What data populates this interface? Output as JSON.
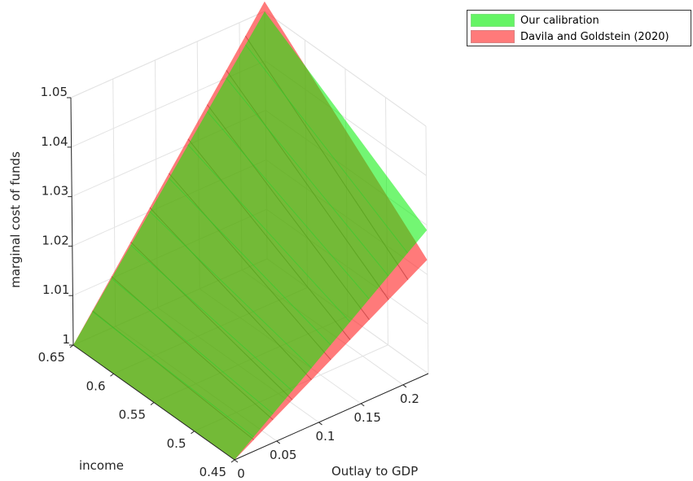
{
  "chart_data": {
    "type": "surface",
    "zlabel": "marginal cost of funds",
    "xlabel": "Outlay to GDP",
    "ylabel": "income",
    "x_ticks": [
      "0",
      "0.05",
      "0.1",
      "0.15",
      "0.2"
    ],
    "y_ticks": [
      "0.45",
      "0.5",
      "0.55",
      "0.6",
      "0.65"
    ],
    "z_ticks": [
      "1",
      "1.01",
      "1.02",
      "1.03",
      "1.04",
      "1.05"
    ],
    "xlim": [
      0,
      0.23
    ],
    "ylim": [
      0.45,
      0.65
    ],
    "zlim": [
      1,
      1.05
    ],
    "grid": true,
    "legend_position": "top-right",
    "series": [
      {
        "name": "Our calibration",
        "color": "#00ee00",
        "corner_values": [
          {
            "outlay": 0,
            "income": 0.65,
            "value": 1.0
          },
          {
            "outlay": 0.23,
            "income": 0.65,
            "value": 1.05
          },
          {
            "outlay": 0,
            "income": 0.45,
            "value": 1.0
          },
          {
            "outlay": 0.23,
            "income": 0.45,
            "value": 1.029
          }
        ]
      },
      {
        "name": "Davila and Goldstein (2020)",
        "color": "#ff2222",
        "corner_values": [
          {
            "outlay": 0,
            "income": 0.65,
            "value": 1.0
          },
          {
            "outlay": 0.23,
            "income": 0.65,
            "value": 1.052
          },
          {
            "outlay": 0,
            "income": 0.45,
            "value": 1.0
          },
          {
            "outlay": 0.23,
            "income": 0.45,
            "value": 1.023
          }
        ]
      }
    ]
  },
  "legend": {
    "items": [
      {
        "label": "Our calibration",
        "color": "#00ee00"
      },
      {
        "label": "Davila and Goldstein (2020)",
        "color": "#ff2222"
      }
    ]
  }
}
